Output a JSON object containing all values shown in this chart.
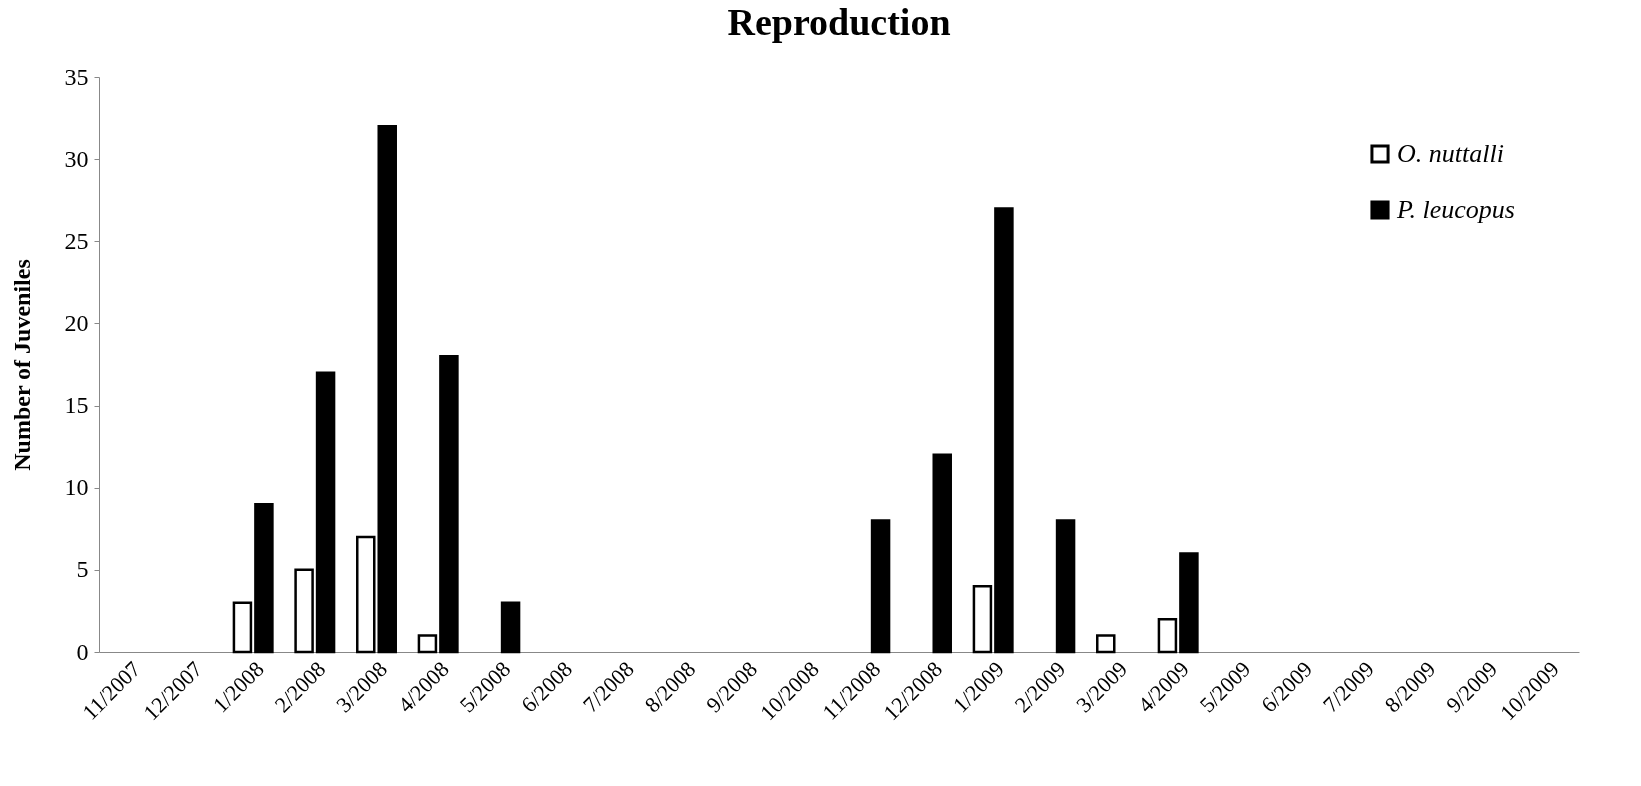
{
  "chart_data": {
    "type": "bar",
    "title": "Reproduction",
    "ylabel": "Number of Juveniles",
    "categories": [
      "11/2007",
      "12/2007",
      "1/2008",
      "2/2008",
      "3/2008",
      "4/2008",
      "5/2008",
      "6/2008",
      "7/2008",
      "8/2008",
      "9/2008",
      "10/2008",
      "11/2008",
      "12/2008",
      "1/2009",
      "2/2009",
      "3/2009",
      "4/2009",
      "5/2009",
      "6/2009",
      "7/2009",
      "8/2009",
      "9/2009",
      "10/2009"
    ],
    "series": [
      {
        "name": "O. nuttalli",
        "color": "#ffffff",
        "values": [
          null,
          null,
          3,
          5,
          7,
          1,
          null,
          null,
          null,
          null,
          null,
          null,
          null,
          null,
          4,
          null,
          1,
          2,
          null,
          null,
          null,
          null,
          null,
          null
        ]
      },
      {
        "name": "P. leucopus",
        "color": "#000000",
        "values": [
          null,
          null,
          9,
          17,
          32,
          18,
          3,
          null,
          null,
          null,
          null,
          null,
          8,
          12,
          27,
          8,
          null,
          6,
          null,
          null,
          null,
          null,
          null,
          null
        ]
      }
    ],
    "ylim": [
      0,
      35
    ],
    "yticks": [
      0,
      5,
      10,
      15,
      20,
      25,
      30,
      35
    ],
    "grid": false,
    "legend": "top right"
  }
}
